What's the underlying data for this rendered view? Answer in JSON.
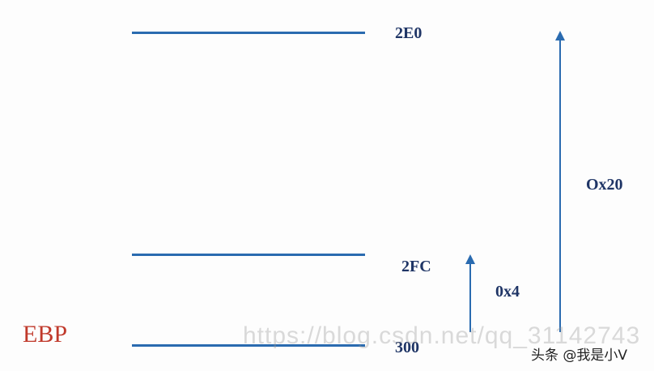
{
  "addresses": {
    "top": "2E0",
    "middle": "2FC",
    "bottom": "300"
  },
  "register": "EBP",
  "offsets": {
    "small": "0x4",
    "large": "Ox20"
  },
  "watermark": {
    "url": "https://blog.csdn.net/qq_31142743",
    "source": "头条 @我是小V"
  },
  "colors": {
    "line": "#2a6bb0",
    "label": "#1f3566",
    "ebp": "#c0392b"
  }
}
